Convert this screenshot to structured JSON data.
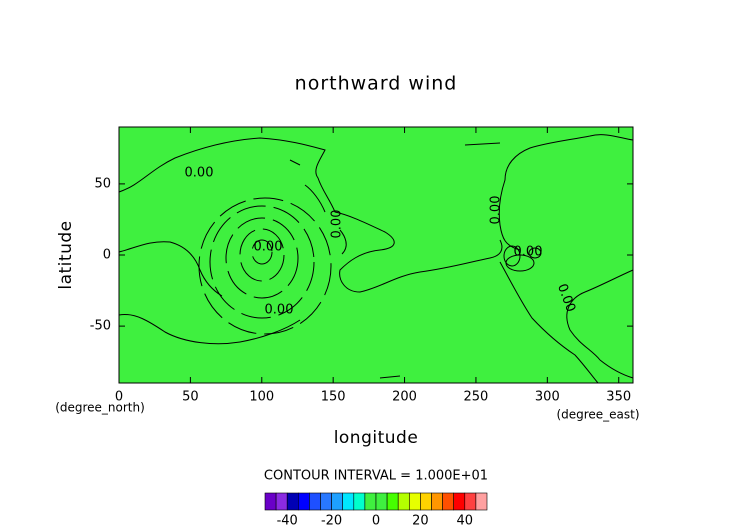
{
  "chart_data": {
    "type": "contour",
    "title": "northward wind",
    "x_label": "longitude",
    "y_label": "latitude",
    "x_unit": "(degree_east)",
    "y_unit": "(degree_north)",
    "xlim": [
      0,
      360
    ],
    "ylim": [
      -90,
      90
    ],
    "xticks": [
      0,
      50,
      100,
      150,
      200,
      250,
      300,
      350
    ],
    "yticks": [
      -50,
      0,
      50
    ],
    "fill_color": "#3ff03f",
    "contour_color": "#000000",
    "contour_levels": [
      {
        "value": 0,
        "label": "0.00"
      }
    ],
    "contour_interval": "CONTOUR INTERVAL = 1.000E+01",
    "colorbar": {
      "bounds": [
        -50,
        -45,
        -40,
        -35,
        -30,
        -25,
        -20,
        -15,
        -10,
        -5,
        0,
        5,
        10,
        15,
        20,
        25,
        30,
        35,
        40,
        45,
        50
      ],
      "colors": [
        "#6a00c8",
        "#8a2be2",
        "#0000b4",
        "#0000ff",
        "#1e50ff",
        "#2878ff",
        "#1ea0ff",
        "#00e6ff",
        "#00ffcc",
        "#3ff03f",
        "#3ff03f",
        "#46ff00",
        "#b4ff00",
        "#e6ff00",
        "#ffd200",
        "#ff9600",
        "#ff5000",
        "#ff0000",
        "#ff4040",
        "#ffa0a0"
      ],
      "ticks": [
        -40,
        -20,
        0,
        20,
        40
      ]
    }
  }
}
